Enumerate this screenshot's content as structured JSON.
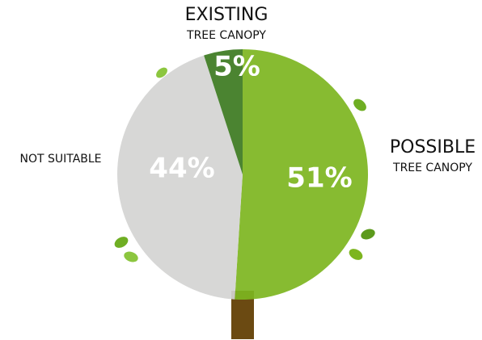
{
  "chart_data": {
    "type": "pie",
    "categories": [
      "POSSIBLE",
      "NOT SUITABLE",
      "EXISTING"
    ],
    "category_subtitles": [
      "TREE CANOPY",
      null,
      "TREE CANOPY"
    ],
    "values": [
      51,
      44,
      5
    ],
    "value_labels": [
      "51%",
      "44%",
      "5%"
    ],
    "colors": [
      "#7db51f",
      "#d4d4d2",
      "#3c7a1f"
    ]
  }
}
